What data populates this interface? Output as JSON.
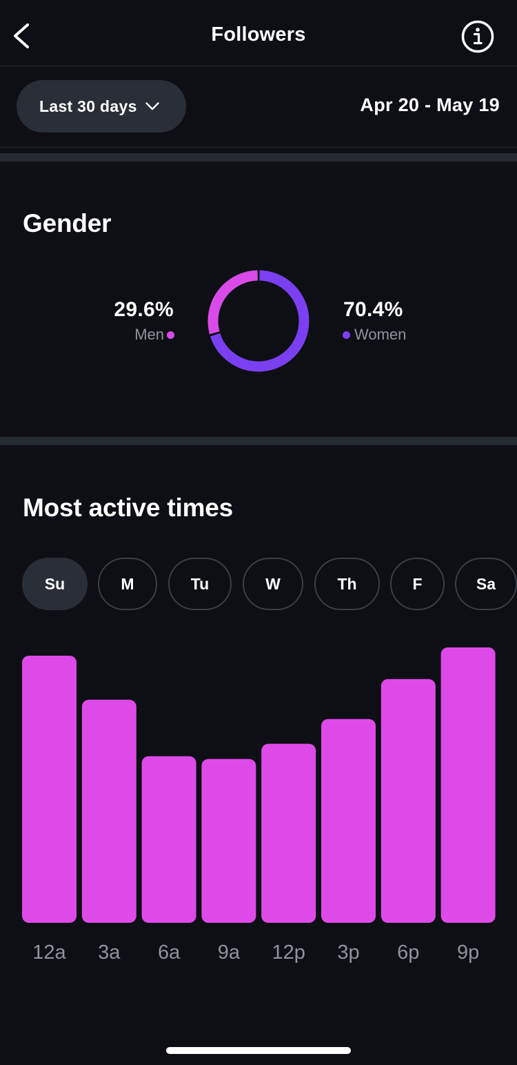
{
  "header": {
    "title": "Followers",
    "back_icon": "chevron-left-icon",
    "info_icon": "info-circle-icon"
  },
  "filter": {
    "range_label": "Last 30 days",
    "range_icon": "chevron-down-icon",
    "date_range": "Apr 20 - May 19"
  },
  "gender": {
    "title": "Gender",
    "men": {
      "percent": "29.6%",
      "label": "Men",
      "value": 29.6,
      "color": "#d94be8"
    },
    "women": {
      "percent": "70.4%",
      "label": "Women",
      "value": 70.4,
      "color": "#7b3ff2"
    }
  },
  "active_times": {
    "title": "Most active times",
    "days": [
      {
        "label": "Su",
        "selected": true
      },
      {
        "label": "M",
        "selected": false
      },
      {
        "label": "Tu",
        "selected": false
      },
      {
        "label": "W",
        "selected": false
      },
      {
        "label": "Th",
        "selected": false
      },
      {
        "label": "F",
        "selected": false
      },
      {
        "label": "Sa",
        "selected": false
      }
    ]
  },
  "chart_data": {
    "type": "bar",
    "categories": [
      "12a",
      "3a",
      "6a",
      "9a",
      "12p",
      "3p",
      "6p",
      "9p"
    ],
    "values": [
      97,
      81,
      60.5,
      59.5,
      65,
      74,
      88.5,
      100
    ],
    "ylim": [
      0,
      100
    ],
    "grid": false,
    "bar_color": "#de4ae8",
    "tick_color": "#8e939c"
  }
}
